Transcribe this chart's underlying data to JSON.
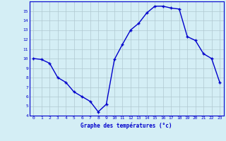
{
  "hours": [
    0,
    1,
    2,
    3,
    4,
    5,
    6,
    7,
    8,
    9,
    10,
    11,
    12,
    13,
    14,
    15,
    16,
    17,
    18,
    19,
    20,
    21,
    22,
    23
  ],
  "temps": [
    10.0,
    9.9,
    9.5,
    8.0,
    7.5,
    6.5,
    6.0,
    5.5,
    4.4,
    5.2,
    9.9,
    11.5,
    13.0,
    13.7,
    14.8,
    15.5,
    15.5,
    15.3,
    15.2,
    12.3,
    11.9,
    10.5,
    10.0,
    7.5
  ],
  "xlabel": "Graphe des températures (°c)",
  "ylim": [
    4,
    16.0
  ],
  "yticks": [
    4,
    5,
    6,
    7,
    8,
    9,
    10,
    11,
    12,
    13,
    14,
    15
  ],
  "xticks": [
    0,
    1,
    2,
    3,
    4,
    5,
    6,
    7,
    8,
    9,
    10,
    11,
    12,
    13,
    14,
    15,
    16,
    17,
    18,
    19,
    20,
    21,
    22,
    23
  ],
  "line_color": "#0000cc",
  "marker_color": "#0000cc",
  "bg_color": "#d4eef5",
  "grid_color": "#b0c8d0",
  "axis_label_color": "#0000cc",
  "tick_color": "#0000cc",
  "border_color": "#0000cc"
}
